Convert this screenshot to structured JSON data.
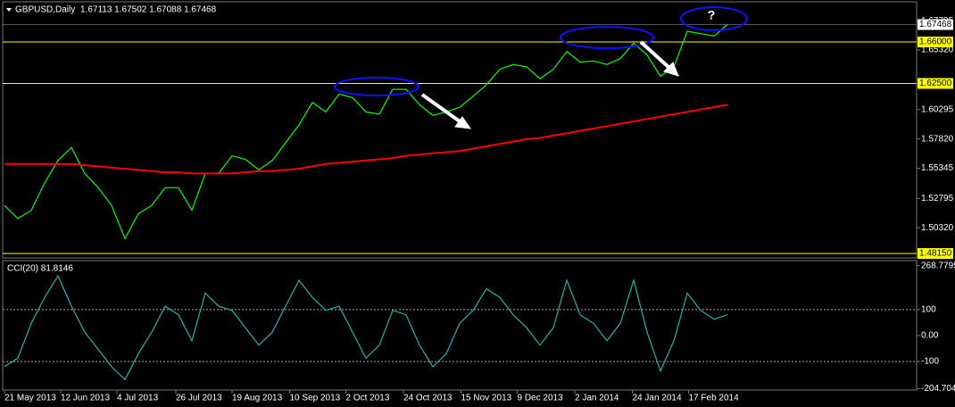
{
  "chart_data": [
    {
      "type": "line",
      "title": "GBPUSD,Daily",
      "subtitle": "1.67113 1.67502 1.67088 1.67468",
      "series": [
        {
          "color": "#00ff00",
          "values": [
            1.522,
            1.511,
            1.518,
            1.541,
            1.56,
            1.571,
            1.549,
            1.537,
            1.522,
            1.494,
            1.515,
            1.522,
            1.537,
            1.537,
            1.518,
            1.549,
            1.549,
            1.564,
            1.561,
            1.552,
            1.56,
            1.575,
            1.59,
            1.609,
            1.601,
            1.616,
            1.613,
            1.601,
            1.599,
            1.62,
            1.62,
            1.607,
            1.598,
            1.601,
            1.605,
            1.614,
            1.624,
            1.637,
            1.641,
            1.639,
            1.629,
            1.637,
            1.652,
            1.643,
            1.644,
            1.641,
            1.646,
            1.659,
            1.649,
            1.631,
            1.639,
            1.669,
            1.667,
            1.665,
            1.67468
          ]
        },
        {
          "color": "#ff0000",
          "values": [
            1.557,
            1.557,
            1.557,
            1.557,
            1.557,
            1.557,
            1.556,
            1.555,
            1.554,
            1.553,
            1.552,
            1.551,
            1.55,
            1.55,
            1.549,
            1.549,
            1.549,
            1.549,
            1.55,
            1.551,
            1.551,
            1.552,
            1.553,
            1.555,
            1.557,
            1.558,
            1.559,
            1.56,
            1.561,
            1.562,
            1.564,
            1.565,
            1.566,
            1.567,
            1.568,
            1.57,
            1.572,
            1.574,
            1.576,
            1.578,
            1.579,
            1.581,
            1.583,
            1.585,
            1.587,
            1.589,
            1.591,
            1.593,
            1.595,
            1.597,
            1.599,
            1.601,
            1.603,
            1.605,
            1.607
          ]
        }
      ],
      "ylim": [
        1.4785,
        1.6894
      ],
      "yticks": [
        {
          "value": 1.67795,
          "label": "1.67795"
        },
        {
          "value": 1.6532,
          "label": "1.65320"
        },
        {
          "value": 1.60295,
          "label": "1.60295"
        },
        {
          "value": 1.5782,
          "label": "1.57820"
        },
        {
          "value": 1.55345,
          "label": "1.55345"
        },
        {
          "value": 1.52795,
          "label": "1.52795"
        },
        {
          "value": 1.5032,
          "label": "1.50320"
        }
      ],
      "levels": [
        {
          "value": 1.66,
          "label": "1.66000"
        },
        {
          "value": 1.625,
          "label": "1.62500"
        },
        {
          "value": 1.4815,
          "label": "1.48150"
        }
      ],
      "level_color": "#ffff00",
      "last_price": {
        "value": 1.67468,
        "label": "1.67468"
      },
      "annotation": "?"
    },
    {
      "type": "line",
      "title": "CCI(20) 81.8146",
      "series": [
        {
          "color": "#20b2aa",
          "values": [
            -120,
            -87,
            47,
            147,
            230,
            113,
            13,
            -53,
            -120,
            -170,
            -70,
            13,
            113,
            80,
            -20,
            163,
            113,
            97,
            30,
            -37,
            13,
            113,
            213,
            147,
            97,
            113,
            13,
            -87,
            -37,
            97,
            80,
            -37,
            -120,
            -70,
            47,
            97,
            180,
            147,
            80,
            30,
            -37,
            30,
            213,
            80,
            47,
            -20,
            47,
            213,
            13,
            -137,
            -20,
            163,
            97,
            63,
            80
          ]
        }
      ],
      "ylim": [
        -220,
        285
      ],
      "yticks": [
        268.7795,
        100,
        {
          "value": 0,
          "label": "0.00"
        },
        -100,
        -204.7049
      ],
      "levels": [
        100,
        -100
      ],
      "xticks": [
        {
          "value": 0,
          "label": "21 May 2013"
        },
        {
          "value": 4.2,
          "label": "12 Jun 2013"
        },
        {
          "value": 8.4,
          "label": "4 Jul 2013"
        },
        {
          "value": 12.8,
          "label": "26 Jul 2013"
        },
        {
          "value": 17,
          "label": "19 Aug 2013"
        },
        {
          "value": 21.3,
          "label": "10 Sep 2013"
        },
        {
          "value": 25.5,
          "label": "2 Oct 2013"
        },
        {
          "value": 29.8,
          "label": "24 Oct 2013"
        },
        {
          "value": 34.1,
          "label": "15 Nov 2013"
        },
        {
          "value": 38.3,
          "label": "9 Dec 2013"
        },
        {
          "value": 42.6,
          "label": "2 Jan 2014"
        },
        {
          "value": 46.9,
          "label": "24 Jan 2014"
        },
        {
          "value": 51.1,
          "label": "17 Feb 2014"
        }
      ]
    }
  ]
}
